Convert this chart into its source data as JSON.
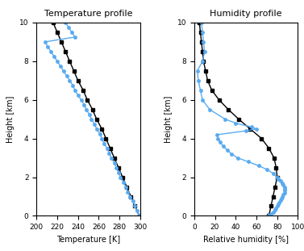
{
  "title_temp": "Temperature profile",
  "title_hum": "Humidity profile",
  "xlabel_temp": "Temperature [K]",
  "xlabel_hum": "Relative humidity [%]",
  "ylabel": "Height [km]",
  "temp_xlim": [
    200,
    300
  ],
  "temp_xticks": [
    200,
    220,
    240,
    260,
    280,
    300
  ],
  "hum_xlim": [
    0,
    100
  ],
  "hum_xticks": [
    0,
    20,
    40,
    60,
    80,
    100
  ],
  "ylim": [
    0,
    10
  ],
  "yticks": [
    0,
    2,
    4,
    6,
    8,
    10
  ],
  "color_era5": "#000000",
  "color_radiometer": "#5aabf0",
  "marker_era5": "s",
  "marker_radiometer": "o",
  "markersize_era5": 3,
  "markersize_radiometer": 2.5,
  "linewidth_era5": 1.0,
  "linewidth_rad": 1.0,
  "temp_era5_height": [
    0,
    0.5,
    1.0,
    1.5,
    2.0,
    2.5,
    3.0,
    3.5,
    4.0,
    4.5,
    5.0,
    5.5,
    6.0,
    6.5,
    7.0,
    7.5,
    8.0,
    8.5,
    9.0,
    9.5,
    10.0
  ],
  "temp_era5_values": [
    299,
    295,
    291,
    287,
    283,
    279,
    275,
    271,
    267,
    263,
    258,
    254,
    249,
    245,
    240,
    236,
    232,
    228,
    224,
    220,
    216
  ],
  "temp_rad_height": [
    0,
    0.25,
    0.5,
    0.75,
    1.0,
    1.25,
    1.5,
    1.75,
    2.0,
    2.25,
    2.5,
    2.75,
    3.0,
    3.25,
    3.5,
    3.75,
    4.0,
    4.25,
    4.5,
    4.75,
    5.0,
    5.25,
    5.5,
    5.75,
    6.0,
    6.25,
    6.5,
    6.75,
    7.0,
    7.25,
    7.5,
    7.75,
    8.0,
    8.25,
    8.5,
    8.75,
    9.0,
    9.25,
    9.5,
    9.75,
    10.0
  ],
  "temp_rad_values": [
    299,
    297,
    295,
    293,
    290,
    288,
    286,
    284,
    281,
    279,
    277,
    275,
    272,
    270,
    268,
    265,
    263,
    261,
    258,
    256,
    253,
    251,
    248,
    246,
    243,
    240,
    237,
    235,
    232,
    229,
    226,
    223,
    220,
    217,
    214,
    211,
    208,
    237,
    234,
    231,
    228
  ],
  "hum_era5_height": [
    0,
    0.5,
    1.0,
    1.5,
    2.0,
    2.5,
    3.0,
    3.5,
    4.0,
    4.5,
    5.0,
    5.5,
    6.0,
    6.5,
    7.0,
    7.5,
    8.0,
    8.5,
    9.0,
    9.5,
    10.0
  ],
  "hum_era5_values": [
    72,
    74,
    76,
    78,
    80,
    79,
    77,
    72,
    65,
    54,
    43,
    33,
    24,
    17,
    13,
    11,
    9,
    8,
    7,
    6,
    5
  ],
  "hum_rad_height": [
    0,
    0.1,
    0.2,
    0.3,
    0.4,
    0.5,
    0.6,
    0.7,
    0.8,
    0.9,
    1.0,
    1.1,
    1.2,
    1.3,
    1.4,
    1.5,
    1.6,
    1.7,
    1.8,
    1.9,
    2.0,
    2.2,
    2.4,
    2.6,
    2.8,
    3.0,
    3.2,
    3.4,
    3.6,
    3.8,
    4.0,
    4.2,
    4.4,
    4.5,
    4.6,
    4.8,
    5.0,
    5.5,
    6.0,
    6.5,
    7.0,
    7.5,
    8.0,
    8.5,
    9.0,
    9.5,
    10.0
  ],
  "hum_rad_values": [
    72,
    74,
    76,
    78,
    79,
    80,
    81,
    82,
    83,
    84,
    85,
    86,
    87,
    87,
    87,
    87,
    86,
    85,
    83,
    81,
    80,
    76,
    70,
    62,
    52,
    42,
    36,
    32,
    28,
    25,
    23,
    22,
    50,
    60,
    55,
    40,
    30,
    15,
    8,
    6,
    4,
    3,
    8,
    10,
    9,
    8,
    7
  ]
}
